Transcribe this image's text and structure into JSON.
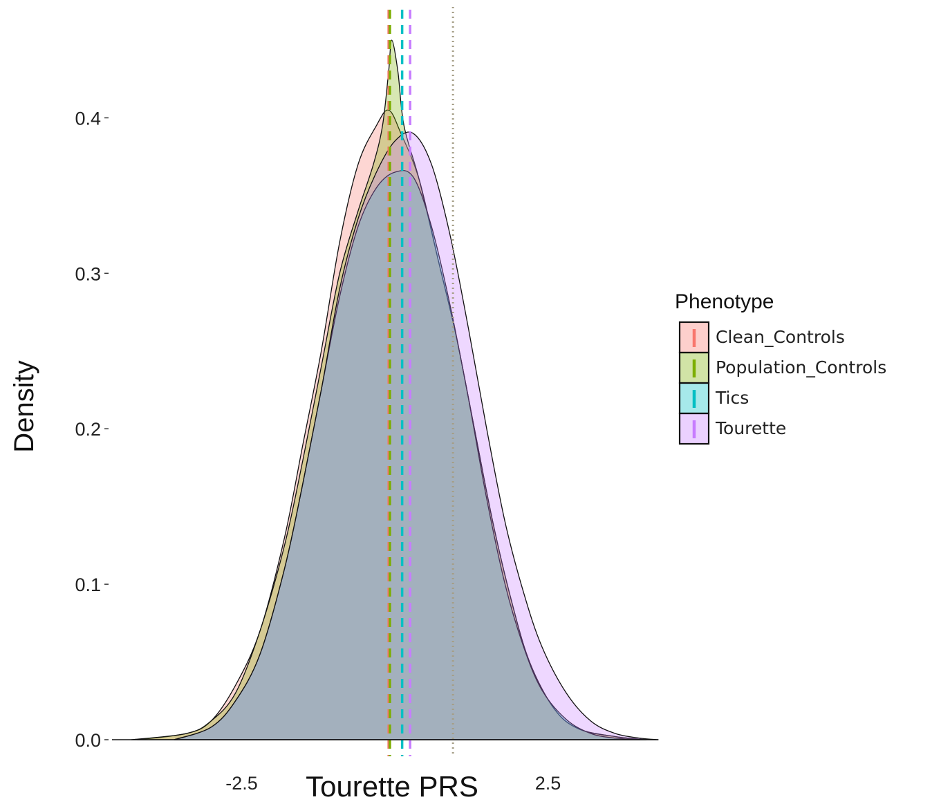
{
  "chart_data": {
    "type": "area",
    "title": "",
    "xlabel": "Tourette PRS",
    "ylabel": "Density",
    "xlim": [
      -4.3,
      4.3
    ],
    "ylim": [
      0,
      0.45
    ],
    "x_ticks": [
      {
        "value": -2.5,
        "label": "-2.5"
      },
      {
        "value": 2.5,
        "label": "2.5"
      }
    ],
    "y_ticks": [
      {
        "value": 0.0,
        "label": "0.0"
      },
      {
        "value": 0.1,
        "label": "0.1"
      },
      {
        "value": 0.2,
        "label": "0.2"
      },
      {
        "value": 0.3,
        "label": "0.3"
      },
      {
        "value": 0.4,
        "label": "0.4"
      }
    ],
    "grid": false,
    "legend": {
      "title": "Phenotype",
      "placement": "right"
    },
    "series": [
      {
        "name": "Clean_Controls",
        "color": "#F8766D",
        "mean": -0.1,
        "points": [
          [
            -4.2,
            0
          ],
          [
            -3.4,
            0.004
          ],
          [
            -3.0,
            0.012
          ],
          [
            -2.6,
            0.035
          ],
          [
            -2.2,
            0.07
          ],
          [
            -1.8,
            0.13
          ],
          [
            -1.5,
            0.19
          ],
          [
            -1.2,
            0.25
          ],
          [
            -0.9,
            0.32
          ],
          [
            -0.6,
            0.37
          ],
          [
            -0.3,
            0.395
          ],
          [
            -0.1,
            0.405
          ],
          [
            0.1,
            0.39
          ],
          [
            0.4,
            0.36
          ],
          [
            0.7,
            0.31
          ],
          [
            1.0,
            0.26
          ],
          [
            1.3,
            0.2
          ],
          [
            1.6,
            0.14
          ],
          [
            1.9,
            0.09
          ],
          [
            2.2,
            0.05
          ],
          [
            2.6,
            0.02
          ],
          [
            3.0,
            0.007
          ],
          [
            3.6,
            0.002
          ],
          [
            4.1,
            0
          ]
        ]
      },
      {
        "name": "Population_Controls",
        "color": "#7CAE00",
        "mean": -0.08,
        "points": [
          [
            -4.3,
            0
          ],
          [
            -3.4,
            0.004
          ],
          [
            -3.0,
            0.012
          ],
          [
            -2.6,
            0.03
          ],
          [
            -2.2,
            0.07
          ],
          [
            -1.8,
            0.125
          ],
          [
            -1.5,
            0.18
          ],
          [
            -1.2,
            0.24
          ],
          [
            -0.9,
            0.3
          ],
          [
            -0.6,
            0.34
          ],
          [
            -0.35,
            0.37
          ],
          [
            -0.2,
            0.395
          ],
          [
            -0.1,
            0.43
          ],
          [
            -0.05,
            0.45
          ],
          [
            0.05,
            0.43
          ],
          [
            0.15,
            0.395
          ],
          [
            0.4,
            0.36
          ],
          [
            0.7,
            0.31
          ],
          [
            1.0,
            0.26
          ],
          [
            1.3,
            0.2
          ],
          [
            1.6,
            0.14
          ],
          [
            1.9,
            0.09
          ],
          [
            2.2,
            0.05
          ],
          [
            2.6,
            0.02
          ],
          [
            3.0,
            0.007
          ],
          [
            3.6,
            0.002
          ],
          [
            4.1,
            0
          ]
        ]
      },
      {
        "name": "Tics",
        "color": "#00BFC4",
        "mean": 0.12,
        "points": [
          [
            -3.6,
            0
          ],
          [
            -3.0,
            0.008
          ],
          [
            -2.6,
            0.025
          ],
          [
            -2.2,
            0.055
          ],
          [
            -1.8,
            0.11
          ],
          [
            -1.5,
            0.165
          ],
          [
            -1.2,
            0.225
          ],
          [
            -0.9,
            0.285
          ],
          [
            -0.6,
            0.33
          ],
          [
            -0.3,
            0.355
          ],
          [
            0.0,
            0.365
          ],
          [
            0.3,
            0.362
          ],
          [
            0.6,
            0.33
          ],
          [
            0.9,
            0.28
          ],
          [
            1.2,
            0.22
          ],
          [
            1.5,
            0.155
          ],
          [
            1.8,
            0.1
          ],
          [
            2.1,
            0.06
          ],
          [
            2.4,
            0.032
          ],
          [
            2.8,
            0.013
          ],
          [
            3.2,
            0.004
          ],
          [
            3.6,
            0.001
          ],
          [
            4.0,
            0
          ]
        ]
      },
      {
        "name": "Tourette",
        "color": "#C77CFF",
        "mean": 0.25,
        "points": [
          [
            -3.6,
            0
          ],
          [
            -3.0,
            0.008
          ],
          [
            -2.6,
            0.025
          ],
          [
            -2.2,
            0.055
          ],
          [
            -1.8,
            0.11
          ],
          [
            -1.5,
            0.165
          ],
          [
            -1.2,
            0.225
          ],
          [
            -0.9,
            0.29
          ],
          [
            -0.6,
            0.335
          ],
          [
            -0.3,
            0.365
          ],
          [
            0.0,
            0.385
          ],
          [
            0.3,
            0.39
          ],
          [
            0.6,
            0.37
          ],
          [
            0.9,
            0.325
          ],
          [
            1.2,
            0.265
          ],
          [
            1.5,
            0.2
          ],
          [
            1.8,
            0.14
          ],
          [
            2.1,
            0.095
          ],
          [
            2.4,
            0.06
          ],
          [
            2.8,
            0.03
          ],
          [
            3.2,
            0.012
          ],
          [
            3.6,
            0.004
          ],
          [
            4.0,
            0.001
          ],
          [
            4.3,
            0
          ]
        ]
      }
    ],
    "reference_lines": [
      {
        "x": 0.95,
        "style": "dotted",
        "color": "#A59E86"
      }
    ]
  }
}
